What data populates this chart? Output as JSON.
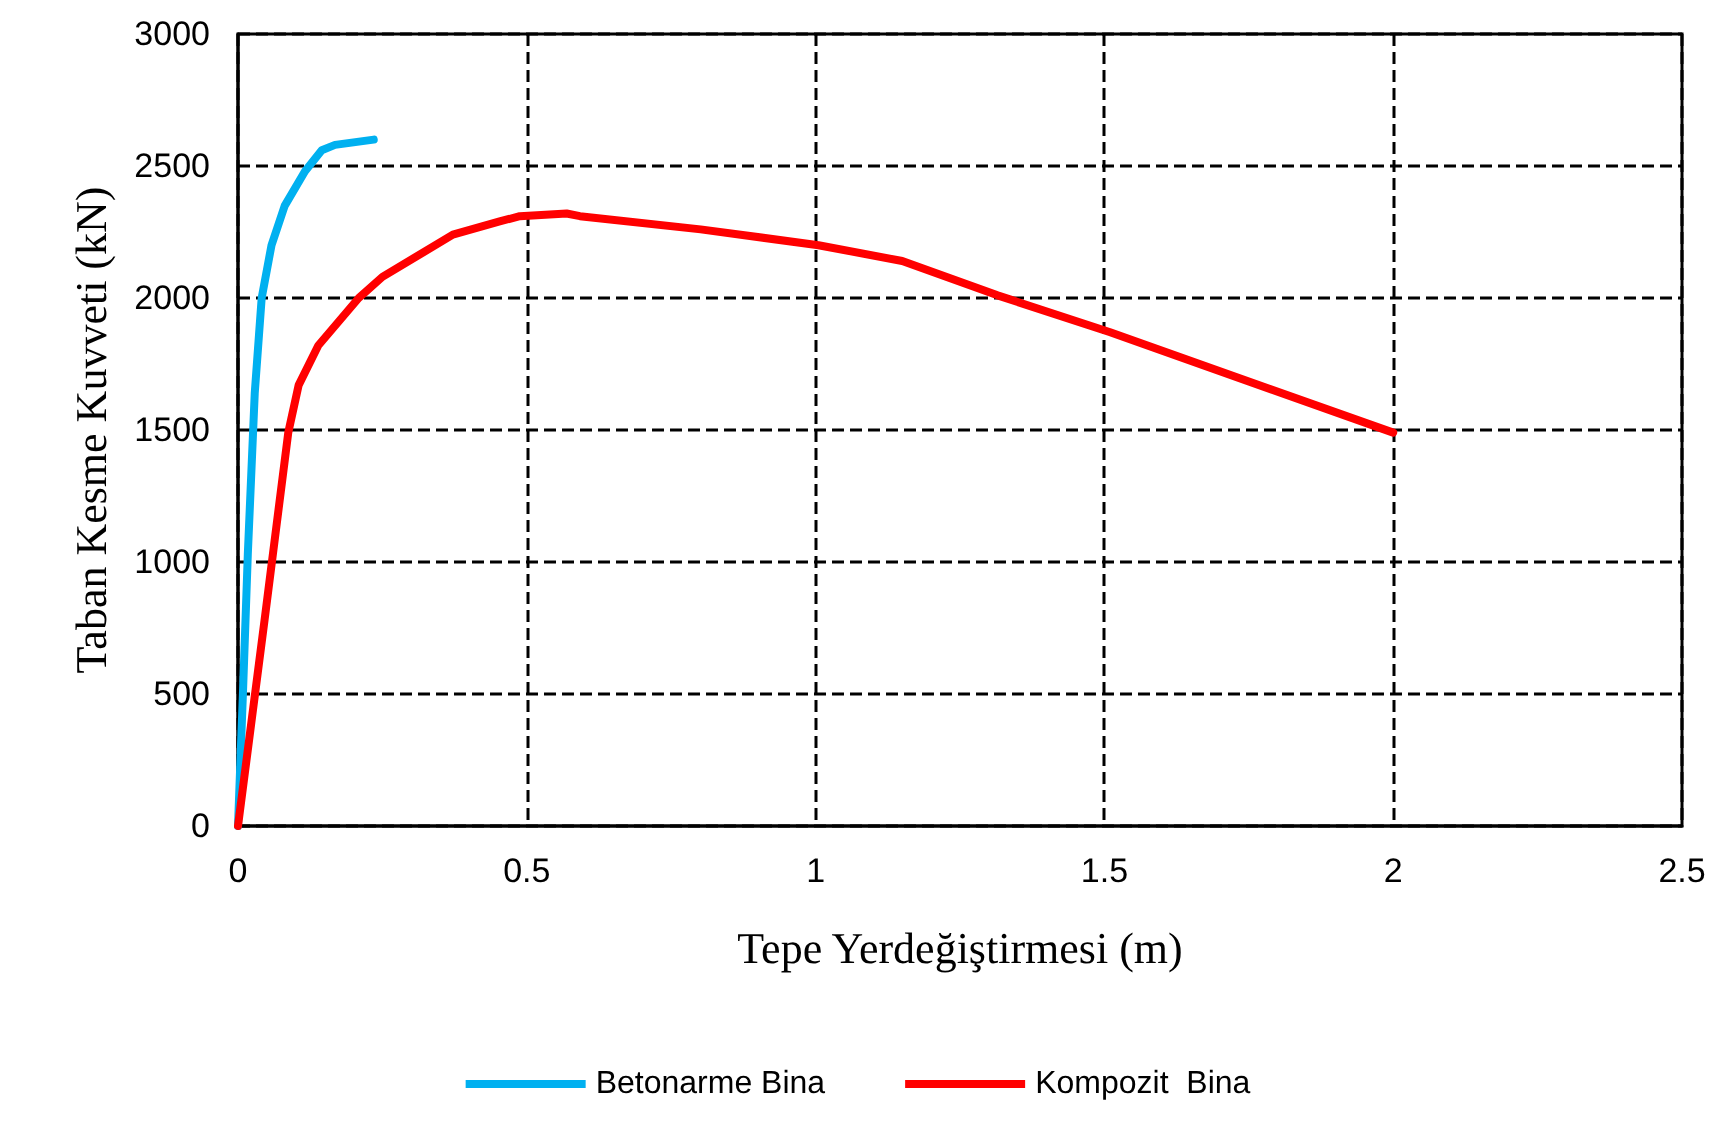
{
  "chart_data": {
    "type": "line",
    "xlabel": "Tepe Yerdeğiştirmesi (m)",
    "ylabel": "Taban Kesme Kuvveti (kN)",
    "xlim": [
      0,
      2.5
    ],
    "xticks": [
      0,
      0.5,
      1,
      1.5,
      2,
      2.5
    ],
    "ylim": [
      0,
      3000
    ],
    "yticks": [
      0,
      500,
      1000,
      1500,
      2000,
      2500,
      3000
    ],
    "grid": true,
    "legend": "bottom",
    "marker": "none",
    "line_style": "solid",
    "series": [
      {
        "name": "Betonarme Bina",
        "color": "#00b0f0",
        "x": [
          0,
          0.009,
          0.017,
          0.029,
          0.041,
          0.058,
          0.081,
          0.116,
          0.145,
          0.168,
          0.235
        ],
        "values": [
          0,
          530,
          1030,
          1640,
          2000,
          2200,
          2350,
          2480,
          2560,
          2580,
          2600
        ]
      },
      {
        "name": "Kompozit  Bina",
        "color": "#ff0000",
        "x": [
          0,
          0.046,
          0.087,
          0.105,
          0.139,
          0.209,
          0.25,
          0.372,
          0.453,
          0.488,
          0.569,
          0.592,
          0.801,
          1.005,
          1.15,
          1.315,
          1.51,
          2.0
        ],
        "values": [
          0,
          780,
          1490,
          1670,
          1820,
          2000,
          2080,
          2240,
          2290,
          2310,
          2320,
          2310,
          2260,
          2200,
          2140,
          2010,
          1870,
          1490
        ]
      }
    ]
  }
}
